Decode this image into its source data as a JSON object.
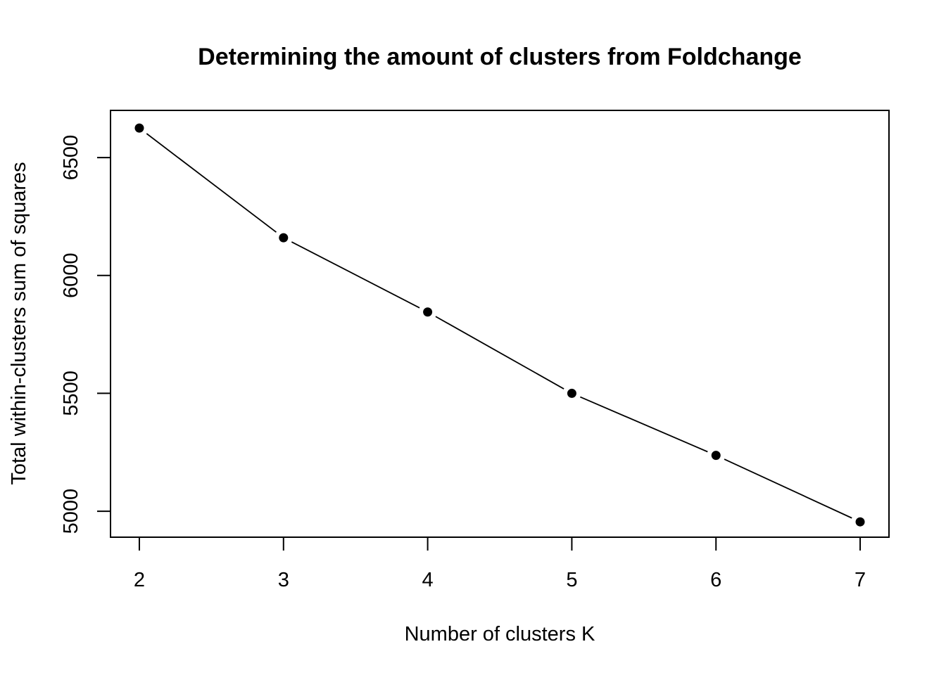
{
  "chart_data": {
    "type": "line",
    "title": "Determining the amount of clusters from Foldchange",
    "xlabel": "Number of clusters K",
    "ylabel": "Total within-clusters sum of squares",
    "x": [
      2,
      3,
      4,
      5,
      6,
      7
    ],
    "series": [
      {
        "values": [
          6625,
          6160,
          5845,
          5500,
          5237,
          4955
        ]
      }
    ],
    "xlim": [
      1.8,
      7.2
    ],
    "ylim": [
      4890,
      6700
    ],
    "xticks": [
      2,
      3,
      4,
      5,
      6,
      7
    ],
    "xtick_labels": [
      "2",
      "3",
      "4",
      "5",
      "6",
      "7"
    ],
    "yticks": [
      5000,
      5500,
      6000,
      6500
    ],
    "ytick_labels": [
      "5000",
      "5500",
      "6000",
      "6500"
    ],
    "grid": false,
    "legend": "none",
    "line_color": "#000000",
    "marker_color": "#000000",
    "marker": "filled-circle"
  }
}
